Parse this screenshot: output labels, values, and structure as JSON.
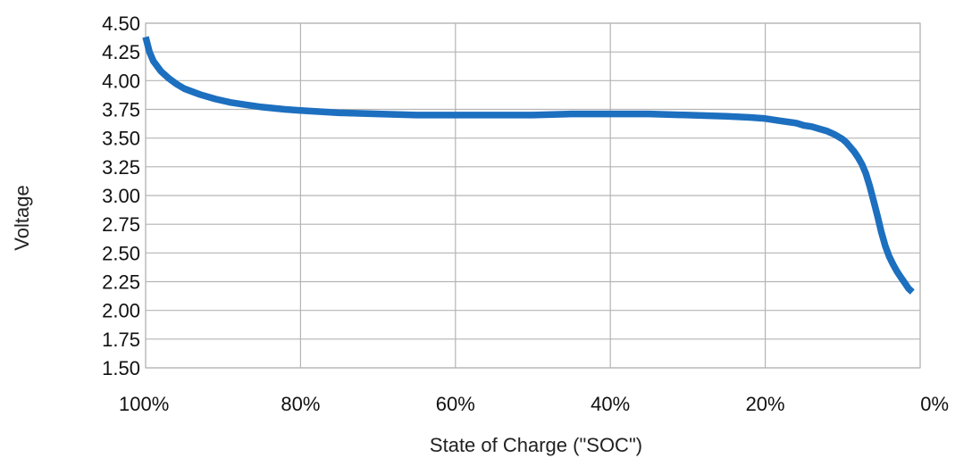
{
  "chart_data": {
    "type": "line",
    "title": "",
    "xlabel": "State of Charge (\"SOC\")",
    "ylabel": "Voltage",
    "x_reversed": true,
    "xlim": [
      100,
      0
    ],
    "ylim": [
      1.5,
      4.5
    ],
    "x_ticks": [
      100,
      80,
      60,
      40,
      20,
      0
    ],
    "x_tick_labels": [
      "100%",
      "80%",
      "60%",
      "40%",
      "20%",
      "0%"
    ],
    "y_ticks": [
      1.5,
      1.75,
      2.0,
      2.25,
      2.5,
      2.75,
      3.0,
      3.25,
      3.5,
      3.75,
      4.0,
      4.25,
      4.5
    ],
    "y_tick_labels": [
      "1.50",
      "1.75",
      "2.00",
      "2.25",
      "2.50",
      "2.75",
      "3.00",
      "3.25",
      "3.50",
      "3.75",
      "4.00",
      "4.25",
      "4.50"
    ],
    "grid": true,
    "legend": "none",
    "line_color": "#1d6fbf",
    "grid_color": "#b4b4b4",
    "series": [
      {
        "x": [
          100,
          99.5,
          99,
          98,
          97,
          96,
          95,
          93,
          91,
          89,
          87,
          85,
          82,
          80,
          75,
          70,
          65,
          60,
          55,
          50,
          45,
          40,
          35,
          30,
          25,
          22,
          20,
          18,
          16,
          15,
          14,
          13,
          12,
          11,
          10,
          9.5,
          9,
          8.5,
          8,
          7.5,
          7,
          6.5,
          6,
          5.5,
          5,
          4.5,
          4,
          3.5,
          3,
          2.5,
          2,
          1.5,
          1
        ],
        "y": [
          4.38,
          4.25,
          4.17,
          4.08,
          4.02,
          3.97,
          3.93,
          3.88,
          3.84,
          3.81,
          3.79,
          3.77,
          3.75,
          3.74,
          3.72,
          3.71,
          3.7,
          3.7,
          3.7,
          3.7,
          3.71,
          3.71,
          3.71,
          3.7,
          3.69,
          3.68,
          3.67,
          3.65,
          3.63,
          3.61,
          3.6,
          3.58,
          3.56,
          3.53,
          3.49,
          3.46,
          3.42,
          3.38,
          3.33,
          3.27,
          3.19,
          3.08,
          2.95,
          2.82,
          2.68,
          2.56,
          2.47,
          2.4,
          2.34,
          2.29,
          2.24,
          2.19,
          2.16
        ]
      }
    ]
  }
}
